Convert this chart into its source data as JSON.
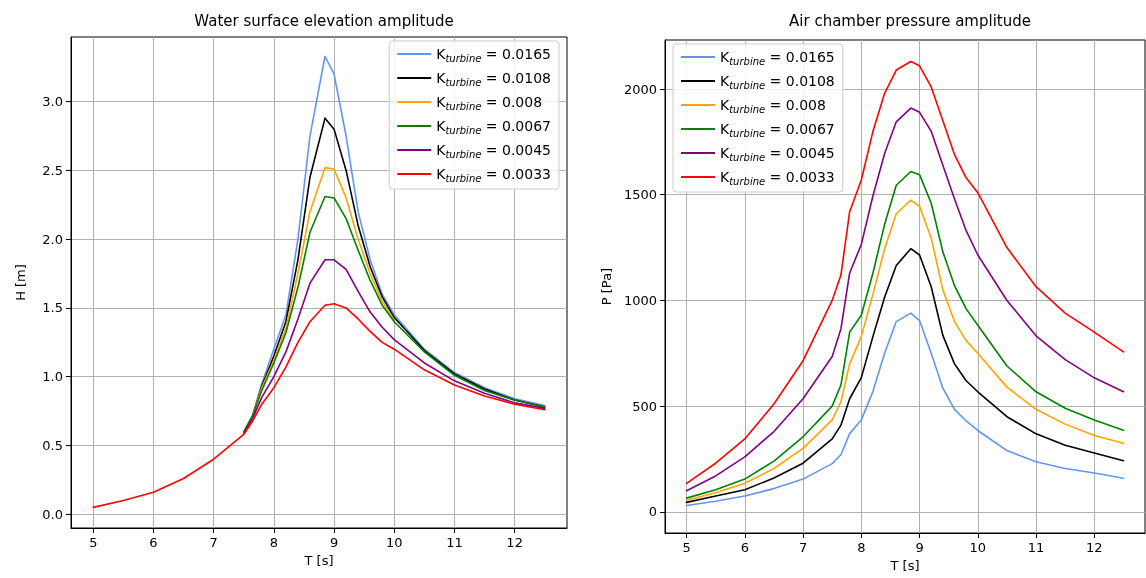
{
  "chart_data": [
    {
      "type": "line",
      "title": "Water surface elevation amplitude",
      "xlabel": "T [s]",
      "ylabel": "H [m]",
      "x": [
        5,
        5.5,
        6,
        6.5,
        7,
        7.5,
        7.65,
        7.8,
        8,
        8.2,
        8.4,
        8.6,
        8.85,
        9,
        9.2,
        9.4,
        9.6,
        9.8,
        10,
        10.5,
        11,
        11.5,
        12,
        12.5
      ],
      "xlim": [
        4.63,
        12.87
      ],
      "xticks": [
        5,
        6,
        7,
        8,
        9,
        10,
        11,
        12
      ],
      "ylim": [
        -0.1,
        3.47
      ],
      "yticks": [
        {
          "value": 0,
          "label": "0.0"
        },
        {
          "value": 0.5,
          "label": "0.5"
        },
        {
          "value": 1,
          "label": "1.0"
        },
        {
          "value": 1.5,
          "label": "1.5"
        },
        {
          "value": 2,
          "label": "2.0"
        },
        {
          "value": 2.5,
          "label": "2.5"
        },
        {
          "value": 3,
          "label": "3.0"
        }
      ],
      "grid": true,
      "legend": "top right",
      "marker": "none",
      "line_style": "solid",
      "series": [
        {
          "name": "K$_{turbine}$ = 0.0165",
          "color": "#6495ed",
          "values": [
            null,
            null,
            null,
            null,
            null,
            null,
            0.72,
            0.95,
            1.2,
            1.45,
            2.0,
            2.75,
            3.33,
            3.2,
            2.75,
            2.2,
            1.85,
            1.6,
            1.45,
            1.2,
            1.03,
            0.92,
            0.84,
            0.79
          ]
        },
        {
          "name": "K$_{turbine}$ = 0.0108",
          "color": "#000000",
          "values": [
            null,
            null,
            null,
            null,
            null,
            null,
            0.72,
            0.93,
            1.15,
            1.4,
            1.85,
            2.45,
            2.88,
            2.8,
            2.5,
            2.1,
            1.8,
            1.58,
            1.43,
            1.19,
            1.02,
            0.91,
            0.83,
            0.78
          ]
        },
        {
          "name": "K$_{turbine}$ = 0.008",
          "color": "#ffa500",
          "values": [
            null,
            null,
            null,
            null,
            null,
            null,
            0.72,
            0.92,
            1.12,
            1.35,
            1.75,
            2.2,
            2.52,
            2.51,
            2.3,
            2.0,
            1.75,
            1.55,
            1.41,
            null,
            null,
            null,
            null,
            null
          ]
        },
        {
          "name": "K$_{turbine}$ = 0.0067",
          "color": "#008000",
          "values": [
            null,
            null,
            null,
            null,
            null,
            0.6,
            0.72,
            0.9,
            1.1,
            1.32,
            1.65,
            2.05,
            2.31,
            2.3,
            2.15,
            1.92,
            1.7,
            1.52,
            1.4,
            1.18,
            1.01,
            0.9,
            0.83,
            0.78
          ]
        },
        {
          "name": "K$_{turbine}$ = 0.0045",
          "color": "#800080",
          "values": [
            null,
            null,
            null,
            null,
            null,
            0.59,
            0.7,
            0.85,
            1.0,
            1.18,
            1.42,
            1.68,
            1.85,
            1.85,
            1.78,
            1.62,
            1.47,
            1.36,
            1.27,
            1.1,
            0.97,
            0.88,
            0.81,
            0.77
          ]
        },
        {
          "name": "K$_{turbine}$ = 0.0033",
          "color": "#ff0000",
          "values": [
            0.05,
            0.1,
            0.16,
            0.26,
            0.4,
            0.58,
            0.68,
            0.8,
            0.92,
            1.07,
            1.25,
            1.4,
            1.52,
            1.53,
            1.5,
            1.42,
            1.33,
            1.25,
            1.2,
            1.05,
            0.94,
            0.86,
            0.8,
            0.76
          ]
        }
      ]
    },
    {
      "type": "line",
      "title": "Air chamber pressure amplitude",
      "xlabel": "T [s]",
      "ylabel": "P [Pa]",
      "x": [
        5,
        5.5,
        6,
        6.5,
        7,
        7.5,
        7.65,
        7.8,
        8,
        8.2,
        8.4,
        8.6,
        8.85,
        9,
        9.2,
        9.4,
        9.6,
        9.8,
        10,
        10.5,
        11,
        11.5,
        12,
        12.5
      ],
      "xlim": [
        4.63,
        12.87
      ],
      "xticks": [
        5,
        6,
        7,
        8,
        9,
        10,
        11,
        12
      ],
      "ylim": [
        -100,
        2232
      ],
      "yticks": [
        0,
        500,
        1000,
        1500,
        2000
      ],
      "grid": true,
      "legend": "top left",
      "marker": "none",
      "line_style": "solid",
      "series": [
        {
          "name": "K$_{turbine}$ = 0.0165",
          "color": "#6495ed",
          "values": [
            30,
            50,
            75,
            110,
            155,
            228,
            270,
            370,
            435,
            570,
            750,
            900,
            940,
            905,
            750,
            585,
            485,
            430,
            385,
            290,
            237,
            205,
            184,
            159
          ]
        },
        {
          "name": "K$_{turbine}$ = 0.0108",
          "color": "#000000",
          "values": [
            45,
            75,
            105,
            160,
            230,
            345,
            410,
            535,
            635,
            830,
            1015,
            1165,
            1245,
            1215,
            1065,
            835,
            700,
            620,
            568,
            450,
            369,
            315,
            278,
            242
          ]
        },
        {
          "name": "K$_{turbine}$ = 0.008",
          "color": "#ffa500",
          "values": [
            55,
            90,
            135,
            205,
            300,
            435,
            520,
            700,
            830,
            1030,
            1245,
            1410,
            1475,
            1445,
            1295,
            1050,
            900,
            810,
            750,
            590,
            485,
            415,
            361,
            325
          ]
        },
        {
          "name": "K$_{turbine}$ = 0.0067",
          "color": "#008000",
          "values": [
            65,
            105,
            155,
            240,
            355,
            500,
            600,
            850,
            930,
            1130,
            1360,
            1545,
            1610,
            1595,
            1460,
            1230,
            1070,
            960,
            883,
            690,
            568,
            490,
            435,
            386
          ]
        },
        {
          "name": "K$_{turbine}$ = 0.0045",
          "color": "#800080",
          "values": [
            100,
            170,
            260,
            380,
            535,
            735,
            865,
            1130,
            1265,
            1495,
            1695,
            1845,
            1910,
            1890,
            1800,
            1640,
            1480,
            1330,
            1215,
            1000,
            833,
            720,
            634,
            568
          ]
        },
        {
          "name": "K$_{turbine}$ = 0.0033",
          "color": "#ff0000",
          "values": [
            135,
            230,
            345,
            510,
            715,
            1000,
            1120,
            1420,
            1570,
            1800,
            1980,
            2090,
            2130,
            2110,
            2010,
            1850,
            1690,
            1580,
            1510,
            1250,
            1065,
            940,
            850,
            757
          ]
        }
      ]
    }
  ]
}
